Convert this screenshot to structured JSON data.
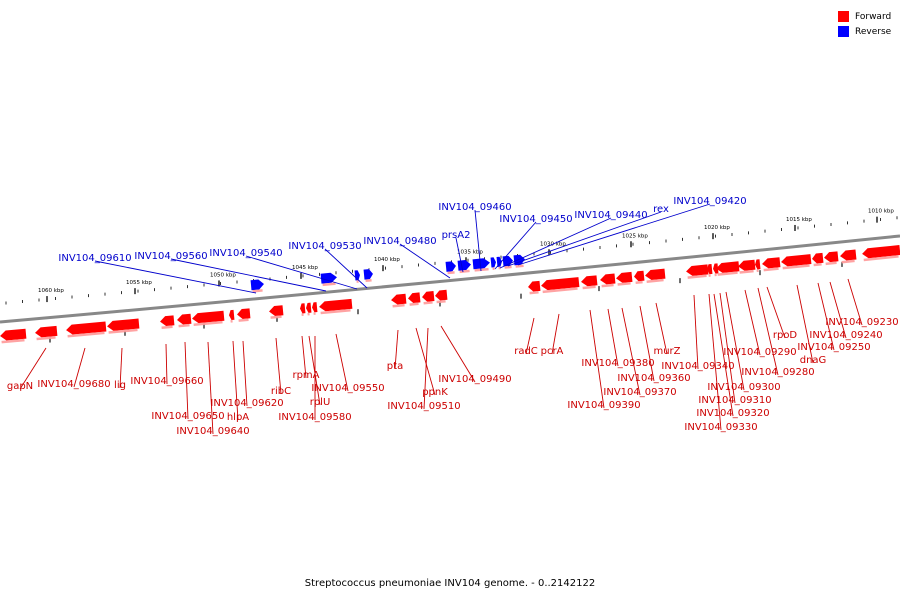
{
  "caption": "Streptococcus pneumoniae INV104 genome. - 0..2142122",
  "legend": [
    {
      "label": "Forward",
      "color": "#ff0000"
    },
    {
      "label": "Reverse",
      "color": "#0000ff"
    }
  ],
  "colors": {
    "forward": "#ff0000",
    "forward_label": "#cc0000",
    "reverse": "#0000ff",
    "reverse_label": "#0000cc",
    "backbone": "#888888"
  },
  "ticks": [
    "1060 kbp",
    "1055 kbp",
    "1050 kbp",
    "1045 kbp",
    "1040 kbp",
    "1035 kbp",
    "1030 kbp",
    "1025 kbp",
    "1020 kbp",
    "1015 kbp",
    "1010 kbp"
  ],
  "reverse_genes": [
    "INV104_09610",
    "INV104_09560",
    "INV104_09540",
    "INV104_09530",
    "INV104_09480",
    "prsA2",
    "INV104_09460",
    "INV104_09450",
    "INV104_09440",
    "rex",
    "INV104_09420"
  ],
  "forward_genes": [
    "gapN",
    "INV104_09680",
    "lig",
    "INV104_09660",
    "INV104_09650",
    "INV104_09640",
    "hlpA",
    "INV104_09620",
    "ribC",
    "rpmA",
    "rplU",
    "INV104_09580",
    "INV104_09550",
    "pta",
    "ppnK",
    "INV104_09510",
    "INV104_09490",
    "radC",
    "pcrA",
    "INV104_09390",
    "INV104_09380",
    "INV104_09370",
    "INV104_09360",
    "murZ",
    "INV104_09340",
    "INV104_09330",
    "INV104_09320",
    "INV104_09310",
    "INV104_09300",
    "INV104_09290",
    "INV104_09280",
    "rpoD",
    "dnaG",
    "INV104_09250",
    "INV104_09240",
    "INV104_09230"
  ]
}
